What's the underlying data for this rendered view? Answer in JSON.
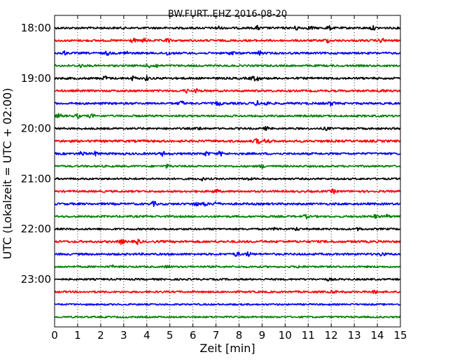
{
  "chart_data": {
    "type": "line",
    "title": "BW.FURT..EHZ 2016-08-20",
    "xlabel": "Zeit  [min]",
    "ylabel": "UTC (Lokalzeit = UTC + 02:00)",
    "xlim": [
      0,
      15
    ],
    "x_ticks": [
      "0",
      "1",
      "2",
      "3",
      "4",
      "5",
      "6",
      "7",
      "8",
      "9",
      "10",
      "11",
      "12",
      "13",
      "14",
      "15"
    ],
    "y_ticks": [
      "18:00",
      "19:00",
      "20:00",
      "21:00",
      "22:00",
      "23:00"
    ],
    "grid": "vertical dotted",
    "trace_interval_min": 15,
    "trace_colors": [
      "#000000",
      "#ff0000",
      "#0000ff",
      "#008000"
    ],
    "traces": [
      {
        "start": "18:00",
        "color": "#000000",
        "events_min": [
          7.1,
          8.8,
          10.5,
          11.1,
          11.9,
          13.8
        ],
        "amplitude_level": 0.55
      },
      {
        "start": "18:15",
        "color": "#ff0000",
        "events_min": [
          3.4,
          3.9,
          4.9,
          11.8,
          14.2
        ],
        "amplitude_level": 0.6
      },
      {
        "start": "18:30",
        "color": "#0000ff",
        "events_min": [
          0.4,
          2.3,
          3.1,
          4.9,
          7.7,
          8.9
        ],
        "amplitude_level": 0.55
      },
      {
        "start": "18:45",
        "color": "#008000",
        "events_min": [
          1.1,
          4.1,
          4.4
        ],
        "amplitude_level": 0.5
      },
      {
        "start": "19:00",
        "color": "#000000",
        "events_min": [
          2.2,
          3.4,
          4.0,
          8.6,
          8.8
        ],
        "amplitude_level": 0.6
      },
      {
        "start": "19:15",
        "color": "#ff0000",
        "events_min": [
          5.7,
          6.2,
          14.2
        ],
        "amplitude_level": 0.55
      },
      {
        "start": "19:30",
        "color": "#0000ff",
        "events_min": [
          5.5,
          7.1,
          8.8,
          9.2,
          12.0
        ],
        "amplitude_level": 0.65
      },
      {
        "start": "19:45",
        "color": "#008000",
        "events_min": [
          0.2,
          1.0,
          1.6
        ],
        "amplitude_level": 0.55
      },
      {
        "start": "20:00",
        "color": "#000000",
        "events_min": [
          6.3,
          9.2,
          11.8
        ],
        "amplitude_level": 0.45
      },
      {
        "start": "20:15",
        "color": "#ff0000",
        "events_min": [
          8.8,
          9.2
        ],
        "amplitude_level": 0.8
      },
      {
        "start": "20:30",
        "color": "#0000ff",
        "events_min": [
          1.2,
          1.8,
          4.7,
          6.6,
          7.2
        ],
        "amplitude_level": 0.6
      },
      {
        "start": "20:45",
        "color": "#008000",
        "events_min": [
          4.9,
          9.0
        ],
        "amplitude_level": 0.45
      },
      {
        "start": "21:00",
        "color": "#000000",
        "events_min": [
          6.4,
          8.4
        ],
        "amplitude_level": 0.4
      },
      {
        "start": "21:15",
        "color": "#ff0000",
        "events_min": [
          7.0,
          12.1
        ],
        "amplitude_level": 0.55
      },
      {
        "start": "21:30",
        "color": "#0000ff",
        "events_min": [
          4.3,
          6.1,
          6.5,
          7.0
        ],
        "amplitude_level": 0.65
      },
      {
        "start": "21:45",
        "color": "#008000",
        "events_min": [
          10.9,
          13.9,
          14.4
        ],
        "amplitude_level": 0.5
      },
      {
        "start": "22:00",
        "color": "#000000",
        "events_min": [
          9.6,
          10.5,
          13.2
        ],
        "amplitude_level": 0.4
      },
      {
        "start": "22:15",
        "color": "#ff0000",
        "events_min": [
          2.9,
          3.6
        ],
        "amplitude_level": 0.7
      },
      {
        "start": "22:30",
        "color": "#0000ff",
        "events_min": [
          7.9,
          8.4,
          14.2
        ],
        "amplitude_level": 0.6
      },
      {
        "start": "22:45",
        "color": "#008000",
        "events_min": [
          2.5,
          4.9,
          10.6
        ],
        "amplitude_level": 0.35
      },
      {
        "start": "23:00",
        "color": "#000000",
        "events_min": [
          11.9
        ],
        "amplitude_level": 0.35
      },
      {
        "start": "23:15",
        "color": "#ff0000",
        "events_min": [
          12.1,
          13.9
        ],
        "amplitude_level": 0.4
      },
      {
        "start": "23:30",
        "color": "#0000ff",
        "events_min": [],
        "amplitude_level": 0.2
      },
      {
        "start": "23:45",
        "color": "#008000",
        "events_min": [],
        "amplitude_level": 0.2
      }
    ]
  }
}
